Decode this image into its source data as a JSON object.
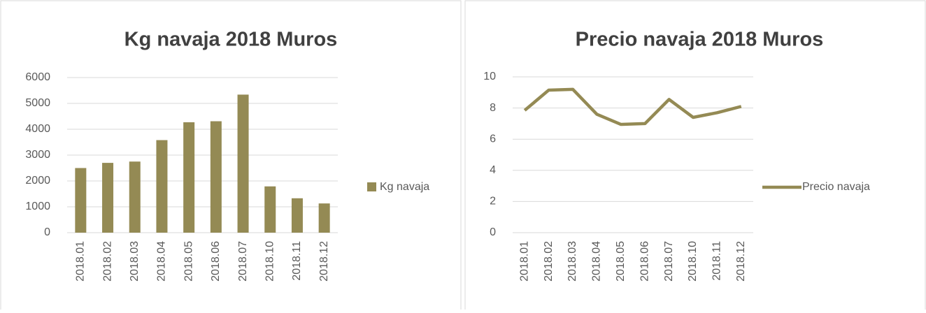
{
  "chart_data": [
    {
      "type": "bar",
      "title": "Kg navaja 2018 Muros",
      "categories": [
        "2018.01",
        "2018.02",
        "2018.03",
        "2018.04",
        "2018.05",
        "2018.06",
        "2018.07",
        "2018.10",
        "2018.11",
        "2018.12"
      ],
      "series": [
        {
          "name": "Kg navaja",
          "color": "#948a54",
          "values": [
            2500,
            2700,
            2750,
            3580,
            4270,
            4310,
            5340,
            1790,
            1330,
            1130
          ]
        }
      ],
      "ylim": [
        0,
        6000
      ],
      "yticks": [
        0,
        1000,
        2000,
        3000,
        4000,
        5000,
        6000
      ],
      "grid": true,
      "legend": "right"
    },
    {
      "type": "line",
      "title": "Precio navaja 2018 Muros",
      "categories": [
        "2018.01",
        "2018.02",
        "2018.03",
        "2018.04",
        "2018.05",
        "2018.06",
        "2018.07",
        "2018.10",
        "2018.11",
        "2018.12"
      ],
      "series": [
        {
          "name": "Precio navaja",
          "color": "#948a54",
          "values": [
            7.85,
            9.15,
            9.2,
            7.6,
            6.95,
            7.0,
            8.55,
            7.4,
            7.7,
            8.1
          ]
        }
      ],
      "ylim": [
        0,
        10
      ],
      "yticks": [
        0,
        2,
        4,
        6,
        8,
        10
      ],
      "grid": true,
      "legend": "right"
    }
  ]
}
